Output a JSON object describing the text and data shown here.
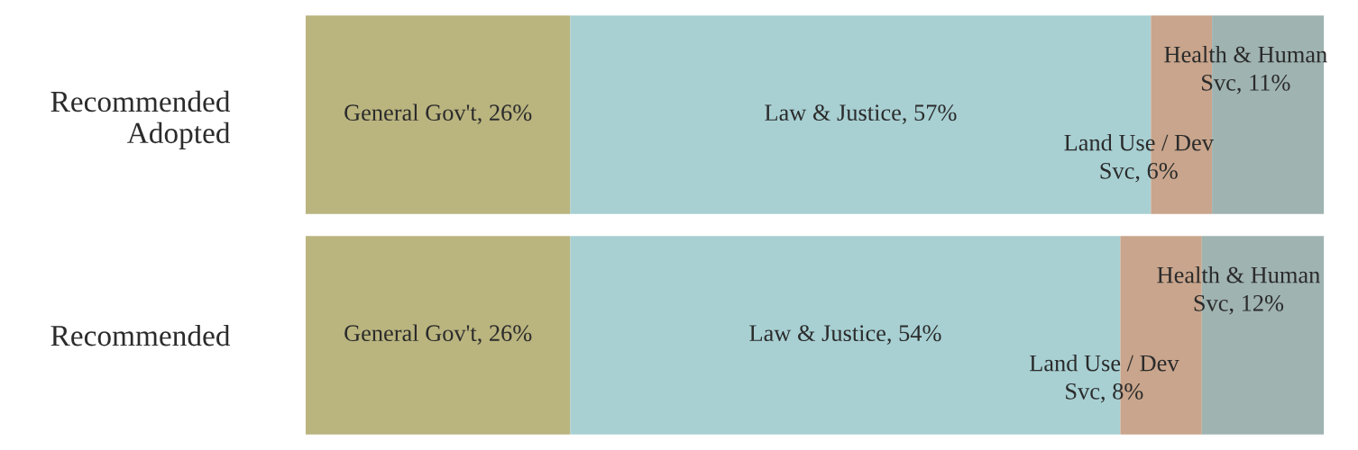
{
  "chart_data": {
    "type": "bar",
    "orientation": "horizontal",
    "stacked": true,
    "legend": false,
    "grid": false,
    "tick_labels": "y",
    "categories": [
      "Recommended\nAdopted",
      "Recommended"
    ],
    "series": [
      {
        "color": "#bab47f",
        "values": [
          26,
          26
        ],
        "value_labels": [
          "General Gov't, 26%",
          "General Gov't, 26%"
        ]
      },
      {
        "color": "#a8d0d3",
        "values": [
          57,
          54
        ],
        "value_labels": [
          "Law & Justice, 57%",
          "Law & Justice, 54%"
        ]
      },
      {
        "color": "#c8a58c",
        "values": [
          6,
          8
        ],
        "value_labels": [
          "Land Use / Dev\nSvc, 6%",
          "Land Use / Dev\nSvc, 8%"
        ]
      },
      {
        "color": "#9fb3b1",
        "values": [
          11,
          12
        ],
        "value_labels": [
          "Health & Human\nSvc, 11%",
          "Health & Human\nSvc, 12%"
        ]
      }
    ]
  }
}
